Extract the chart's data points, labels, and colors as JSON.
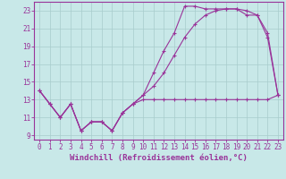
{
  "xlabel": "Windchill (Refroidissement éolien,°C)",
  "bg_color": "#c8e8e8",
  "grid_color": "#a8cccc",
  "line_color": "#993399",
  "spine_color": "#993399",
  "xlim": [
    -0.5,
    23.5
  ],
  "ylim": [
    8.5,
    24.0
  ],
  "xticks": [
    0,
    1,
    2,
    3,
    4,
    5,
    6,
    7,
    8,
    9,
    10,
    11,
    12,
    13,
    14,
    15,
    16,
    17,
    18,
    19,
    20,
    21,
    22,
    23
  ],
  "yticks": [
    9,
    11,
    13,
    15,
    17,
    19,
    21,
    23
  ],
  "curve1_x": [
    0,
    1,
    2,
    3,
    4,
    5,
    6,
    7,
    8,
    9,
    10,
    11,
    12,
    13,
    14,
    15,
    16,
    17,
    18,
    19,
    20,
    21,
    22,
    23
  ],
  "curve1_y": [
    14.0,
    12.5,
    11.0,
    12.5,
    9.5,
    10.5,
    10.5,
    9.5,
    11.5,
    12.5,
    13.0,
    13.0,
    13.0,
    13.0,
    13.0,
    13.0,
    13.0,
    13.0,
    13.0,
    13.0,
    13.0,
    13.0,
    13.0,
    13.5
  ],
  "curve2_x": [
    0,
    1,
    2,
    3,
    4,
    5,
    6,
    7,
    8,
    9,
    10,
    11,
    12,
    13,
    14,
    15,
    16,
    17,
    18,
    19,
    20,
    21,
    22,
    23
  ],
  "curve2_y": [
    14.0,
    12.5,
    11.0,
    12.5,
    9.5,
    10.5,
    10.5,
    9.5,
    11.5,
    12.5,
    13.5,
    14.5,
    16.0,
    18.0,
    20.0,
    21.5,
    22.5,
    23.0,
    23.2,
    23.2,
    23.0,
    22.5,
    20.5,
    13.5
  ],
  "curve3_x": [
    0,
    1,
    2,
    3,
    4,
    5,
    6,
    7,
    8,
    9,
    10,
    11,
    12,
    13,
    14,
    15,
    16,
    17,
    18,
    19,
    20,
    21,
    22,
    23
  ],
  "curve3_y": [
    14.0,
    12.5,
    11.0,
    12.5,
    9.5,
    10.5,
    10.5,
    9.5,
    11.5,
    12.5,
    13.5,
    16.0,
    18.5,
    20.5,
    23.5,
    23.5,
    23.2,
    23.2,
    23.2,
    23.2,
    22.5,
    22.5,
    20.0,
    13.5
  ],
  "xlabel_fontsize": 6.5,
  "tick_fontsize": 5.5
}
